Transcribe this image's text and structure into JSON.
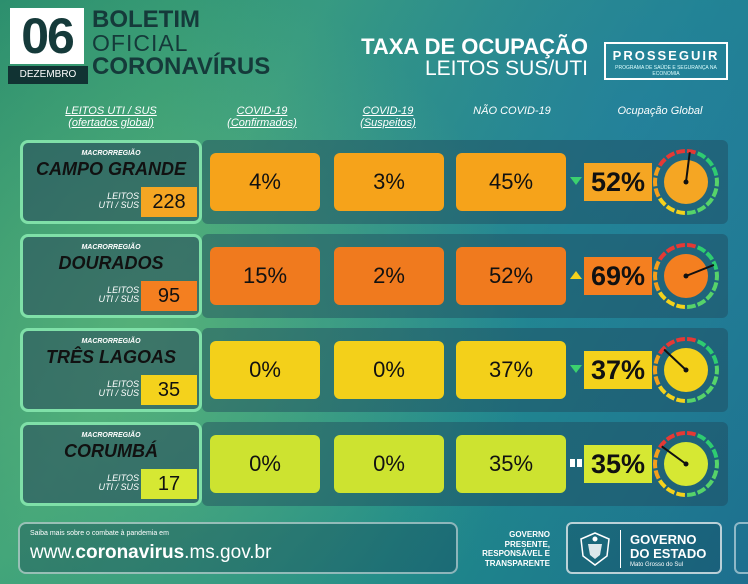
{
  "header": {
    "day": "06",
    "month": "DEZEMBRO",
    "boletim_l1": "BOLETIM",
    "boletim_l2": "OFICIAL",
    "boletim_l3": "CORONAVÍRUS",
    "taxa_l1": "TAXA DE OCUPAÇÃO",
    "taxa_l2": "LEITOS SUS/UTI",
    "prosseguir": "PROSSEGUIR",
    "prosseguir_sub": "PROGRAMA DE SAÚDE E SEGURANÇA NA ECONOMIA"
  },
  "columns": {
    "leitos": "LEITOS UTI / SUS",
    "leitos_sub": "(ofertados global)",
    "confirmados": "COVID-19",
    "confirmados_sub": "(Confirmados)",
    "suspeitos": "COVID-19",
    "suspeitos_sub": "(Suspeitos)",
    "nao_covid": "NÃO COVID-19",
    "global": "Ocupação Global"
  },
  "rows": [
    {
      "macro": "MACRORREGIÃO",
      "region": "CAMPO GRANDE",
      "leitos_label_1": "LEITOS",
      "leitos_label_2": "UTI / SUS",
      "leitos": "228",
      "confirmados": "4%",
      "suspeitos": "3%",
      "nao_covid": "45%",
      "global": "52%",
      "global_value": 52,
      "trend": "down",
      "color": "#f5a623",
      "cell_color": "#f6a31a"
    },
    {
      "macro": "MACRORREGIÃO",
      "region": "DOURADOS",
      "leitos_label_1": "LEITOS",
      "leitos_label_2": "UTI / SUS",
      "leitos": "95",
      "confirmados": "15%",
      "suspeitos": "2%",
      "nao_covid": "52%",
      "global": "69%",
      "global_value": 69,
      "trend": "up",
      "color": "#f47f20",
      "cell_color": "#f07a1e"
    },
    {
      "macro": "MACRORREGIÃO",
      "region": "TRÊS LAGOAS",
      "leitos_label_1": "LEITOS",
      "leitos_label_2": "UTI / SUS",
      "leitos": "35",
      "confirmados": "0%",
      "suspeitos": "0%",
      "nao_covid": "37%",
      "global": "37%",
      "global_value": 37,
      "trend": "down",
      "color": "#f4d21c",
      "cell_color": "#f3d01a"
    },
    {
      "macro": "MACRORREGIÃO",
      "region": "CORUMBÁ",
      "leitos_label_1": "LEITOS",
      "leitos_label_2": "UTI / SUS",
      "leitos": "17",
      "confirmados": "0%",
      "suspeitos": "0%",
      "nao_covid": "35%",
      "global": "35%",
      "global_value": 35,
      "trend": "stable",
      "color": "#d6e833",
      "cell_color": "#cde330"
    }
  ],
  "footer": {
    "saiba": "Saiba mais sobre o combate à pandemia em",
    "url_pre": "www.",
    "url_bold": "coronavirus",
    "url_post": ".ms.gov.br",
    "gov_text_1": "GOVERNO",
    "gov_text_2": "PRESENTE,",
    "gov_text_3": "RESPONSÁVEL E",
    "gov_text_4": "TRANSPARENTE",
    "gov_l1": "GOVERNO",
    "gov_l2": "DO ESTADO",
    "gov_l3": "Mato Grosso do Sul"
  },
  "icons": {
    "trend_down": "triangle-down-icon",
    "trend_up": "triangle-up-icon",
    "trend_stable": "hourglass-icon",
    "gauge": "gauge-icon",
    "crest": "crest-icon"
  },
  "colors": {
    "trend_down": "#3bd16f",
    "trend_up": "#f4d21c",
    "trend_stable": "#ffffff"
  }
}
